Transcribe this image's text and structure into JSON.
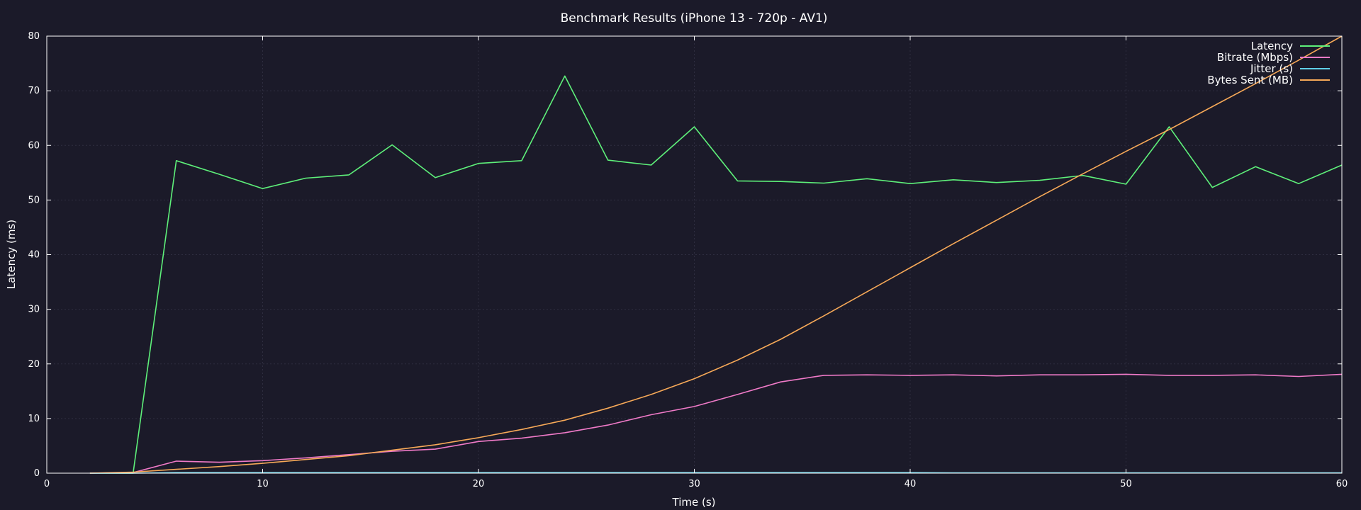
{
  "chart_data": {
    "type": "line",
    "title": "Benchmark Results (iPhone 13 - 720p - AV1)",
    "xlabel": "Time (s)",
    "ylabel": "Latency (ms)",
    "xlim": [
      0,
      60
    ],
    "ylim": [
      0,
      80
    ],
    "xticks": [
      0,
      10,
      20,
      30,
      40,
      50,
      60
    ],
    "yticks": [
      0,
      10,
      20,
      30,
      40,
      50,
      60,
      70,
      80
    ],
    "grid": true,
    "legend_position": "top-right",
    "x": [
      2,
      4,
      6,
      8,
      10,
      12,
      14,
      16,
      18,
      20,
      22,
      24,
      26,
      28,
      30,
      32,
      34,
      36,
      38,
      40,
      42,
      44,
      46,
      48,
      50,
      52,
      54,
      56,
      58,
      60
    ],
    "series": [
      {
        "name": "Latency",
        "color": "#5ef07a",
        "values": [
          0,
          0,
          57.2,
          54.7,
          52.1,
          54.0,
          54.6,
          60.1,
          54.1,
          56.7,
          57.2,
          72.7,
          57.3,
          56.4,
          63.4,
          53.5,
          53.4,
          53.1,
          53.9,
          53.0,
          53.7,
          53.2,
          53.6,
          54.5,
          52.9,
          63.4,
          52.3,
          56.1,
          53.0,
          56.4
        ]
      },
      {
        "name": "Bitrate (Mbps)",
        "color": "#f07ac8",
        "values": [
          0,
          0.1,
          2.2,
          2.0,
          2.3,
          2.8,
          3.4,
          4.0,
          4.4,
          5.8,
          6.4,
          7.4,
          8.8,
          10.7,
          12.2,
          14.4,
          16.7,
          17.9,
          18.0,
          17.9,
          18.0,
          17.8,
          18.0,
          18.0,
          18.1,
          17.9,
          17.9,
          18.0,
          17.7,
          18.1
        ]
      },
      {
        "name": "Jitter (s)",
        "color": "#5fd0e8",
        "values": [
          0,
          0,
          0.1,
          0.1,
          0.1,
          0.1,
          0.1,
          0.1,
          0.1,
          0.1,
          0.1,
          0.1,
          0.1,
          0.1,
          0.1,
          0.1,
          0.1,
          0.1,
          0.1,
          0.1,
          0.05,
          0.05,
          0.05,
          0.05,
          0.05,
          0.05,
          0.05,
          0.05,
          0.05,
          0.05
        ]
      },
      {
        "name": "Bytes Sent (MB)",
        "color": "#f7a958",
        "values": [
          0,
          0.2,
          0.7,
          1.2,
          1.8,
          2.5,
          3.2,
          4.2,
          5.2,
          6.5,
          8.0,
          9.7,
          11.9,
          14.4,
          17.3,
          20.7,
          24.5,
          28.8,
          33.2,
          37.6,
          42.0,
          46.3,
          50.6,
          54.8,
          58.9,
          62.9,
          67.1,
          71.3,
          75.6,
          80.0
        ]
      }
    ]
  }
}
